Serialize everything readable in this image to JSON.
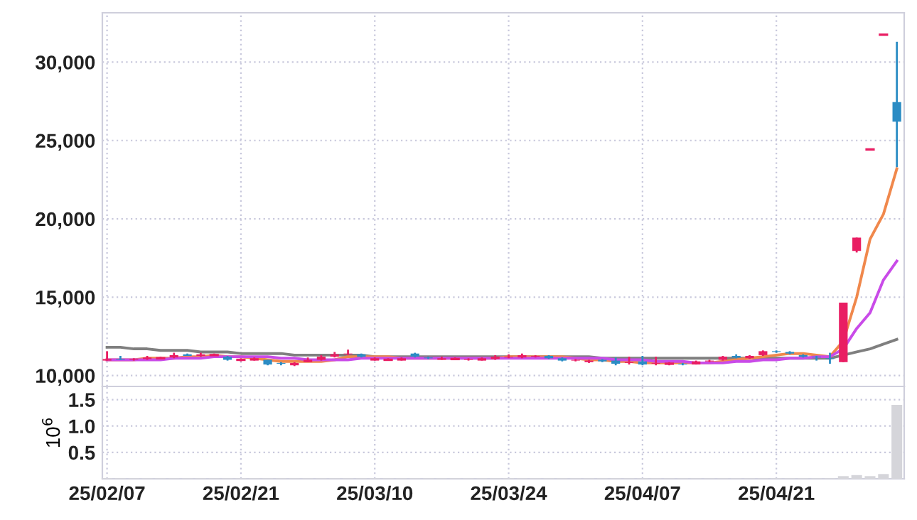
{
  "chart_data": [
    {
      "type": "candlestick",
      "ohlc": [
        [
          10950,
          11550,
          10950,
          11050
        ],
        [
          11050,
          11250,
          11000,
          11000
        ],
        [
          11000,
          11100,
          10950,
          11050
        ],
        [
          11050,
          11250,
          11000,
          11150
        ],
        [
          11100,
          11200,
          11050,
          11100
        ],
        [
          11150,
          11450,
          11100,
          11300
        ],
        [
          11350,
          11400,
          11250,
          11250
        ],
        [
          11250,
          11450,
          11200,
          11350
        ],
        [
          11300,
          11400,
          11250,
          11300
        ],
        [
          11200,
          11250,
          10950,
          11000
        ],
        [
          11000,
          11100,
          10900,
          11000
        ],
        [
          10950,
          11150,
          10950,
          11100
        ],
        [
          11000,
          11000,
          10650,
          10700
        ],
        [
          10800,
          10850,
          10650,
          10750
        ],
        [
          10650,
          10850,
          10600,
          10800
        ],
        [
          10850,
          11150,
          10850,
          11000
        ],
        [
          11000,
          11300,
          10950,
          11200
        ],
        [
          11200,
          11500,
          11150,
          11350
        ],
        [
          11350,
          11650,
          11300,
          11400
        ],
        [
          11350,
          11400,
          11150,
          11200
        ],
        [
          10950,
          11150,
          10950,
          11100
        ],
        [
          11000,
          11100,
          10950,
          11000
        ],
        [
          10950,
          11150,
          10950,
          11100
        ],
        [
          11400,
          11450,
          11150,
          11200
        ],
        [
          11150,
          11200,
          11050,
          11100
        ],
        [
          11000,
          11200,
          11000,
          11100
        ],
        [
          11050,
          11150,
          11000,
          11050
        ],
        [
          11000,
          11100,
          10950,
          11050
        ],
        [
          10950,
          11150,
          10950,
          11100
        ],
        [
          11050,
          11300,
          11000,
          11200
        ],
        [
          11150,
          11350,
          11100,
          11200
        ],
        [
          11150,
          11400,
          11100,
          11300
        ],
        [
          11200,
          11300,
          11150,
          11250
        ],
        [
          11250,
          11300,
          11050,
          11100
        ],
        [
          11100,
          11150,
          10900,
          10950
        ],
        [
          10950,
          11050,
          10900,
          11000
        ],
        [
          10850,
          11000,
          10800,
          10950
        ],
        [
          11000,
          11050,
          10850,
          10900
        ],
        [
          10950,
          11150,
          10650,
          10750
        ],
        [
          10800,
          11200,
          10700,
          10850
        ],
        [
          10900,
          11250,
          10650,
          10700
        ],
        [
          10750,
          11200,
          10650,
          10800
        ],
        [
          10750,
          10850,
          10650,
          10750
        ],
        [
          10750,
          10800,
          10650,
          10700
        ],
        [
          10700,
          10950,
          10700,
          10900
        ],
        [
          10900,
          11000,
          10850,
          10950
        ],
        [
          11000,
          11250,
          10950,
          11200
        ],
        [
          11250,
          11350,
          11100,
          11150
        ],
        [
          11100,
          11300,
          11050,
          11250
        ],
        [
          11300,
          11600,
          11250,
          11550
        ],
        [
          11550,
          11600,
          11450,
          11500
        ],
        [
          11500,
          11550,
          11350,
          11400
        ],
        [
          11300,
          11350,
          11150,
          11200
        ],
        [
          11200,
          11250,
          10950,
          11150
        ],
        [
          11100,
          11450,
          10750,
          11050
        ],
        [
          10850,
          14650,
          10850,
          14650
        ],
        [
          17950,
          18800,
          17850,
          18800
        ],
        [
          24430,
          24430,
          24430,
          24430
        ],
        [
          31750,
          31750,
          31750,
          31750
        ],
        [
          27450,
          31300,
          23300,
          26200
        ]
      ],
      "colors": [
        "#e91e63",
        "#2b8cc4",
        "#e91e63",
        "#e91e63",
        "#e91e63",
        "#e91e63",
        "#2b8cc4",
        "#e91e63",
        "#e91e63",
        "#2b8cc4",
        "#e91e63",
        "#e91e63",
        "#2b8cc4",
        "#2b8cc4",
        "#e91e63",
        "#e91e63",
        "#e91e63",
        "#e91e63",
        "#e91e63",
        "#2b8cc4",
        "#e91e63",
        "#e91e63",
        "#e91e63",
        "#2b8cc4",
        "#2b8cc4",
        "#e91e63",
        "#e91e63",
        "#e91e63",
        "#e91e63",
        "#e91e63",
        "#e91e63",
        "#e91e63",
        "#e91e63",
        "#2b8cc4",
        "#2b8cc4",
        "#e91e63",
        "#e91e63",
        "#2b8cc4",
        "#2b8cc4",
        "#e91e63",
        "#2b8cc4",
        "#e91e63",
        "#e91e63",
        "#2b8cc4",
        "#e91e63",
        "#e91e63",
        "#e91e63",
        "#2b8cc4",
        "#e91e63",
        "#e91e63",
        "#2b8cc4",
        "#2b8cc4",
        "#2b8cc4",
        "#2b8cc4",
        "#2b8cc4",
        "#e91e63",
        "#e91e63",
        "#e91e63",
        "#e91e63",
        "#2b8cc4"
      ],
      "series": [
        {
          "type": "line",
          "color": "#7f7f7f",
          "values": [
            11800,
            11800,
            11700,
            11700,
            11600,
            11600,
            11600,
            11500,
            11500,
            11500,
            11400,
            11400,
            11400,
            11400,
            11300,
            11300,
            11300,
            11300,
            11300,
            11300,
            11200,
            11200,
            11200,
            11200,
            11200,
            11200,
            11200,
            11200,
            11200,
            11200,
            11200,
            11200,
            11200,
            11200,
            11200,
            11200,
            11200,
            11100,
            11100,
            11100,
            11100,
            11100,
            11100,
            11100,
            11100,
            11100,
            11100,
            11100,
            11100,
            11100,
            11100,
            11100,
            11100,
            11100,
            11100,
            11300,
            11500,
            11700,
            12000,
            12300
          ]
        },
        {
          "type": "line",
          "color": "#f0884c",
          "values": [
            11000,
            11000,
            11000,
            11100,
            11100,
            11100,
            11200,
            11200,
            11300,
            11200,
            11200,
            11100,
            11000,
            10900,
            10900,
            10900,
            10900,
            11000,
            11200,
            11200,
            11200,
            11200,
            11100,
            11100,
            11100,
            11100,
            11100,
            11100,
            11100,
            11100,
            11200,
            11200,
            11200,
            11200,
            11200,
            11100,
            11000,
            11000,
            10900,
            10900,
            10800,
            10800,
            10800,
            10800,
            10800,
            10800,
            10900,
            11000,
            11100,
            11200,
            11300,
            11400,
            11400,
            11300,
            11200,
            12200,
            15000,
            18700,
            20300,
            23200
          ]
        },
        {
          "type": "line",
          "color": "#c94be8",
          "values": [
            11000,
            11000,
            11000,
            11000,
            11000,
            11100,
            11100,
            11100,
            11200,
            11200,
            11200,
            11200,
            11200,
            11100,
            11100,
            11000,
            11000,
            11000,
            11000,
            11100,
            11100,
            11100,
            11100,
            11100,
            11100,
            11100,
            11100,
            11100,
            11100,
            11100,
            11100,
            11100,
            11100,
            11100,
            11100,
            11100,
            11100,
            11100,
            11000,
            11000,
            11000,
            10900,
            10900,
            10900,
            10800,
            10800,
            10800,
            10900,
            10900,
            11000,
            11000,
            11100,
            11100,
            11200,
            11200,
            11700,
            13000,
            14000,
            16100,
            17300
          ]
        }
      ],
      "ylim": [
        9300,
        33150
      ],
      "yticks": [
        {
          "value": 10000,
          "label": "10,000"
        },
        {
          "value": 15000,
          "label": "15,000"
        },
        {
          "value": 20000,
          "label": "20,000"
        },
        {
          "value": 25000,
          "label": "25,000"
        },
        {
          "value": 30000,
          "label": "30,000"
        }
      ],
      "grid": true,
      "tick_labels": "y"
    },
    {
      "type": "bar",
      "categories": [
        "25/02/07",
        null,
        null,
        null,
        null,
        null,
        null,
        null,
        null,
        null,
        "25/02/21",
        null,
        null,
        null,
        null,
        null,
        null,
        null,
        null,
        null,
        "25/03/10",
        null,
        null,
        null,
        null,
        null,
        null,
        null,
        null,
        null,
        "25/03/24",
        null,
        null,
        null,
        null,
        null,
        null,
        null,
        null,
        null,
        "25/04/07",
        null,
        null,
        null,
        null,
        null,
        null,
        null,
        null,
        null,
        "25/04/21",
        null,
        null,
        null,
        null,
        null,
        null,
        null,
        null,
        null
      ],
      "values": [
        0.01,
        0.01,
        0.01,
        0.01,
        0.01,
        0.01,
        0.01,
        0.01,
        0.01,
        0.01,
        0.01,
        0.01,
        0.01,
        0.01,
        0.01,
        0.01,
        0.01,
        0.01,
        0.01,
        0.01,
        0.01,
        0.01,
        0.01,
        0.01,
        0.01,
        0.01,
        0.01,
        0.01,
        0.01,
        0.01,
        0.01,
        0.01,
        0.01,
        0.01,
        0.01,
        0.01,
        0.01,
        0.01,
        0.01,
        0.01,
        0.01,
        0.01,
        0.01,
        0.01,
        0.01,
        0.01,
        0.01,
        0.01,
        0.01,
        0.01,
        0.01,
        0.01,
        0.01,
        0.01,
        0.01,
        0.05,
        0.07,
        0.05,
        0.09,
        1.4
      ],
      "color": "#d5d5da",
      "ylabel": "10$^{6}$",
      "ylim": [
        0,
        1.75
      ],
      "yticks": [
        {
          "value": 0.5,
          "label": "0.5"
        },
        {
          "value": 1.0,
          "label": "1.0"
        },
        {
          "value": 1.5,
          "label": "1.5"
        }
      ],
      "grid": true
    }
  ]
}
